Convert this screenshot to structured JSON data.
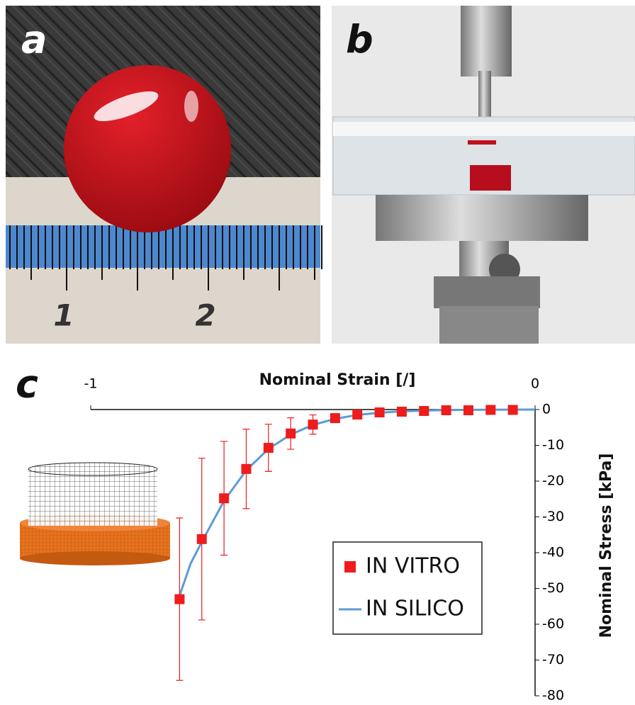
{
  "panel_labels": [
    "a",
    "b",
    "c"
  ],
  "ruler_labels": [
    "1",
    "2"
  ],
  "chart_data": {
    "type": "scatter-line",
    "x_label": "Nominal Strain [/]",
    "y_label": "Nominal Stress [kPa]",
    "xlim": [
      -1,
      0
    ],
    "xticks": [
      -1,
      0
    ],
    "ylim": [
      -80,
      0
    ],
    "yticks": [
      0,
      -10,
      -20,
      -30,
      -40,
      -50,
      -60,
      -70,
      -80
    ],
    "series": [
      {
        "name": "IN VITRO",
        "kind": "marker",
        "color": "#ee1c1c",
        "x": [
          -0.8,
          -0.75,
          -0.7,
          -0.65,
          -0.6,
          -0.55,
          -0.5,
          -0.45,
          -0.4,
          -0.35,
          -0.3,
          -0.25,
          -0.2,
          -0.15,
          -0.1,
          -0.05
        ],
        "values": [
          -53,
          -36.2,
          -24.8,
          -16.6,
          -10.7,
          -6.7,
          -4.2,
          -2.4,
          -1.4,
          -0.8,
          -0.6,
          -0.4,
          -0.2,
          -0.2,
          -0.1,
          -0.1
        ],
        "errors": [
          22.7,
          22.6,
          15.9,
          11.1,
          6.6,
          4.4,
          2.7,
          1.2,
          0.6,
          0.3,
          0.3,
          0.3,
          0.3,
          0.3,
          0.3,
          0.3
        ]
      },
      {
        "name": "IN SILICO",
        "kind": "line",
        "color": "#5b9bd5",
        "x": [
          -0.8,
          -0.775,
          -0.75,
          -0.7,
          -0.65,
          -0.6,
          -0.55,
          -0.5,
          -0.45,
          -0.4,
          -0.35,
          -0.3,
          -0.25,
          -0.2,
          -0.15,
          -0.1,
          -0.05,
          0
        ],
        "values": [
          -52,
          -43,
          -37,
          -25.5,
          -17,
          -11,
          -7,
          -4.3,
          -2.6,
          -1.5,
          -0.9,
          -0.5,
          -0.3,
          -0.15,
          -0.08,
          -0.04,
          -0.02,
          0
        ]
      }
    ]
  }
}
